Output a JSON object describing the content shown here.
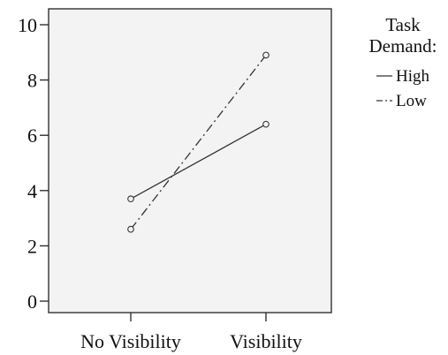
{
  "chart_data": {
    "type": "line",
    "categories": [
      "No Visibility",
      "Visibility"
    ],
    "series": [
      {
        "name": "High",
        "values": [
          3.7,
          6.4
        ],
        "line_style": "solid"
      },
      {
        "name": "Low",
        "values": [
          2.6,
          8.9
        ],
        "line_style": "dash-dot"
      }
    ],
    "ylim": [
      0,
      10
    ],
    "yticks": [
      0,
      2,
      4,
      6,
      8,
      10
    ],
    "legend": {
      "title_line1": "Task",
      "title_line2": "Demand:",
      "placement": "top-right, outside plot"
    },
    "grid": false,
    "plot_background": "#f3f3f3",
    "line_color": "#333333"
  }
}
